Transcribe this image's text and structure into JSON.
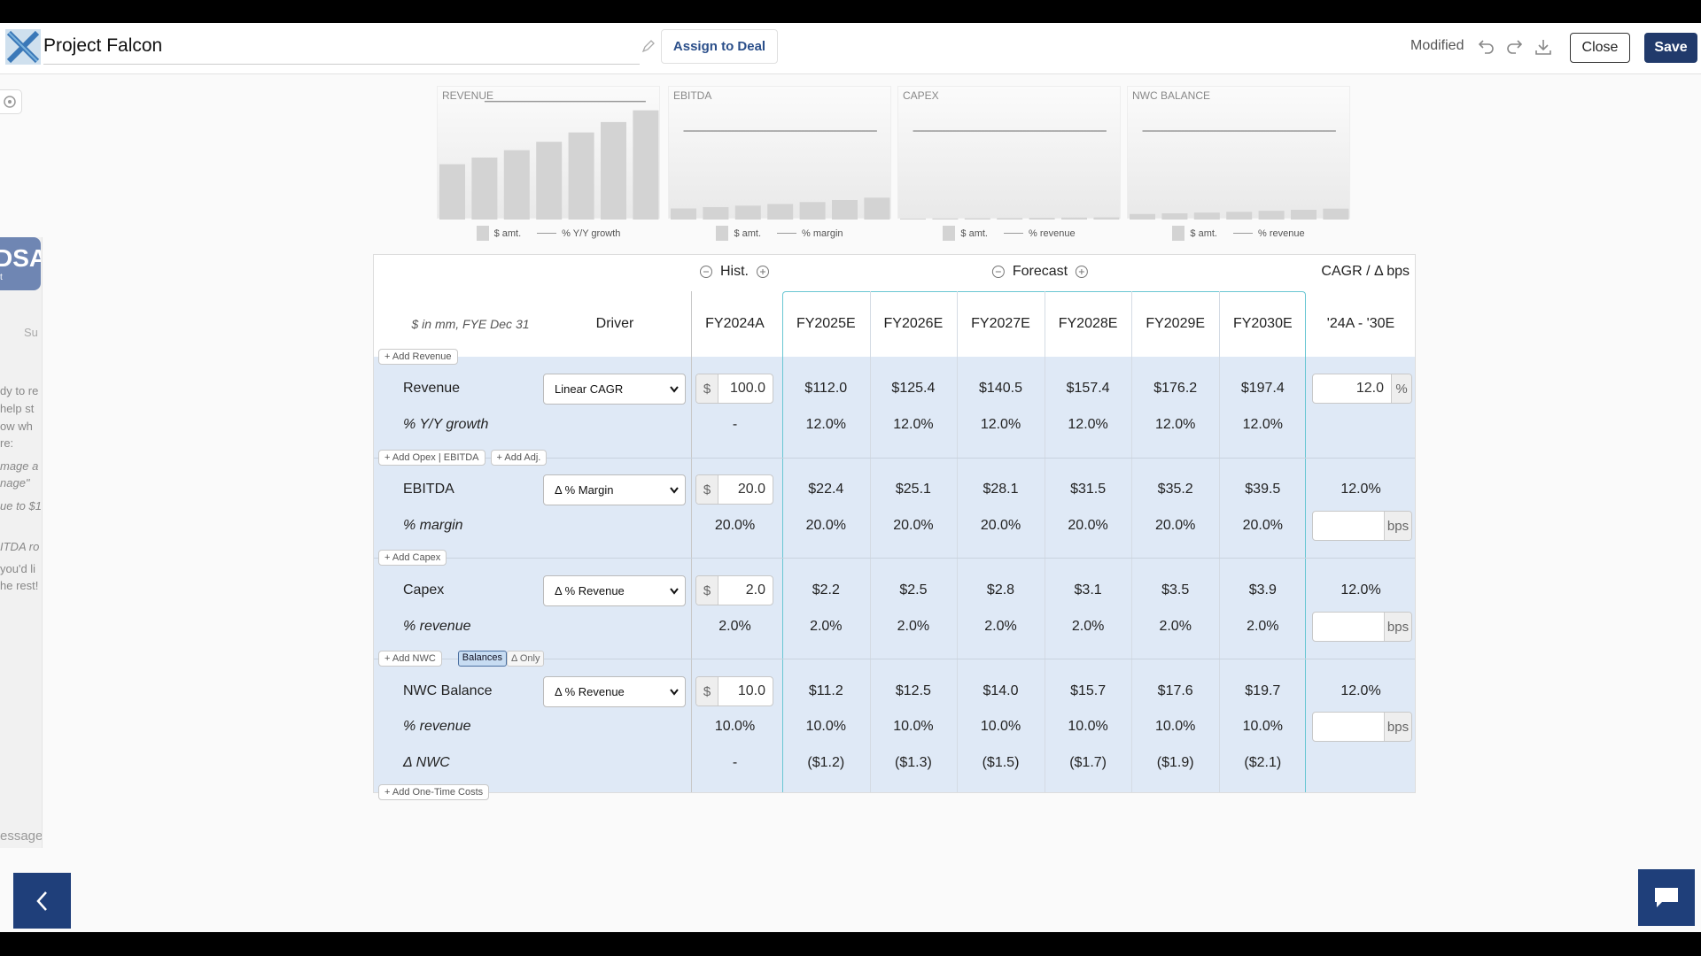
{
  "header": {
    "title": "Project Falcon",
    "assign": "Assign to Deal",
    "status": "Modified",
    "close": "Close",
    "save": "Save"
  },
  "sidebar": {
    "logo": "DSA",
    "logo_sub": "t",
    "tab": "Su",
    "fragments": [
      "dy to re",
      "help st",
      "ow wh",
      "re:",
      "mage a",
      "nage\"",
      "ue to $1",
      "ITDA ro",
      "you'd li",
      "he rest!"
    ],
    "placeholder": "essage"
  },
  "chart_data": [
    {
      "type": "bar",
      "title": "REVENUE",
      "ylim": [
        0,
        240
      ],
      "y2lim": [
        0,
        13.5
      ],
      "series": [
        {
          "name": "$ amt.",
          "color": "#d3d3d3",
          "values": [
            100,
            112,
            125.4,
            140.5,
            157.4,
            176.2,
            197.4
          ]
        },
        {
          "name": "% Y/Y growth",
          "type": "line",
          "axis": "y2",
          "color": "#9a9a9a",
          "values": [
            null,
            12,
            12,
            12,
            12,
            12,
            12
          ]
        }
      ]
    },
    {
      "type": "bar",
      "title": "EBITDA",
      "ylim": [
        0,
        240
      ],
      "y2lim": [
        0,
        30
      ],
      "series": [
        {
          "name": "$ amt.",
          "color": "#d3d3d3",
          "values": [
            20,
            22.4,
            25.1,
            28.1,
            31.5,
            35.2,
            39.5
          ]
        },
        {
          "name": "% margin",
          "type": "line",
          "axis": "y2",
          "color": "#9a9a9a",
          "values": [
            20,
            20,
            20,
            20,
            20,
            20,
            20
          ]
        }
      ]
    },
    {
      "type": "bar",
      "title": "CAPEX",
      "ylim": [
        0,
        240
      ],
      "y2lim": [
        0,
        3
      ],
      "series": [
        {
          "name": "$ amt.",
          "color": "#d3d3d3",
          "values": [
            2,
            2.2,
            2.5,
            2.8,
            3.1,
            3.5,
            3.9
          ]
        },
        {
          "name": "% revenue",
          "type": "line",
          "axis": "y2",
          "color": "#9a9a9a",
          "values": [
            2,
            2,
            2,
            2,
            2,
            2,
            2
          ]
        }
      ]
    },
    {
      "type": "bar",
      "title": "NWC BALANCE",
      "ylim": [
        0,
        240
      ],
      "y2lim": [
        0,
        15
      ],
      "series": [
        {
          "name": "$ amt.",
          "color": "#d3d3d3",
          "values": [
            10,
            11.2,
            12.5,
            14,
            15.7,
            17.6,
            19.7
          ]
        },
        {
          "name": "% revenue",
          "type": "line",
          "axis": "y2",
          "color": "#9a9a9a",
          "values": [
            10,
            10,
            10,
            10,
            10,
            10,
            10
          ]
        }
      ]
    }
  ],
  "table": {
    "groups": [
      "Hist.",
      "Forecast",
      "CAGR / Δ bps"
    ],
    "columns": [
      "$ in mm, FYE Dec 31",
      "Driver",
      "FY2024A",
      "FY2025E",
      "FY2026E",
      "FY2027E",
      "FY2028E",
      "FY2029E",
      "FY2030E",
      "'24A - '30E"
    ],
    "sections": [
      {
        "buttons": [
          "Add Revenue"
        ],
        "rows": [
          {
            "label": "Revenue",
            "driver": "Linear CAGR",
            "unit": "$",
            "input": "100.0",
            "cells": [
              "$112.0",
              "$125.4",
              "$140.5",
              "$157.4",
              "$176.2",
              "$197.4"
            ],
            "cagr_input": "12.0",
            "cagr_unit": "%"
          },
          {
            "label": "% Y/Y growth",
            "hist": "-",
            "cells": [
              "12.0%",
              "12.0%",
              "12.0%",
              "12.0%",
              "12.0%",
              "12.0%"
            ]
          }
        ]
      },
      {
        "buttons": [
          "Add Opex | EBITDA",
          "Add Adj."
        ],
        "rows": [
          {
            "label": "EBITDA",
            "driver": "Δ % Margin",
            "unit": "$",
            "input": "20.0",
            "cells": [
              "$22.4",
              "$25.1",
              "$28.1",
              "$31.5",
              "$35.2",
              "$39.5"
            ],
            "cagr": "12.0%"
          },
          {
            "label": "% margin",
            "hist": "20.0%",
            "cells": [
              "20.0%",
              "20.0%",
              "20.0%",
              "20.0%",
              "20.0%",
              "20.0%"
            ],
            "cagr_unit": "bps"
          }
        ]
      },
      {
        "buttons": [
          "Add Capex"
        ],
        "rows": [
          {
            "label": "Capex",
            "driver": "Δ % Revenue",
            "unit": "$",
            "input": "2.0",
            "cells": [
              "$2.2",
              "$2.5",
              "$2.8",
              "$3.1",
              "$3.5",
              "$3.9"
            ],
            "cagr": "12.0%"
          },
          {
            "label": "% revenue",
            "hist": "2.0%",
            "cells": [
              "2.0%",
              "2.0%",
              "2.0%",
              "2.0%",
              "2.0%",
              "2.0%"
            ],
            "cagr_unit": "bps"
          }
        ]
      },
      {
        "buttons": [
          "Add NWC"
        ],
        "toggle": [
          "Balances",
          "Δ Only"
        ],
        "rows": [
          {
            "label": "NWC Balance",
            "driver": "Δ % Revenue",
            "unit": "$",
            "input": "10.0",
            "cells": [
              "$11.2",
              "$12.5",
              "$14.0",
              "$15.7",
              "$17.6",
              "$19.7"
            ],
            "cagr": "12.0%"
          },
          {
            "label": "% revenue",
            "hist": "10.0%",
            "cells": [
              "10.0%",
              "10.0%",
              "10.0%",
              "10.0%",
              "10.0%",
              "10.0%"
            ],
            "cagr_unit": "bps"
          },
          {
            "label": "Δ NWC",
            "hist": "-",
            "cells": [
              "($1.2)",
              "($1.3)",
              "($1.5)",
              "($1.7)",
              "($1.9)",
              "($2.1)"
            ]
          }
        ]
      }
    ],
    "final_button": "Add One-Time Costs"
  }
}
